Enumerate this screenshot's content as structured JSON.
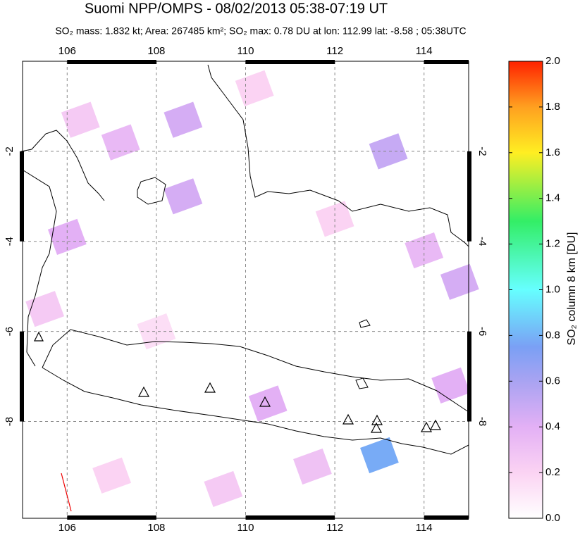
{
  "chart_data": {
    "type": "map",
    "title": "Suomi NPP/OMPS - 08/02/2013 05:38-07:19 UT",
    "subtitle": "SO₂ mass: 1.832 kt; Area: 267485 km²; SO₂ max: 0.78 DU at lon: 112.99 lat: -8.58 ; 05:38UTC",
    "xlim": [
      105,
      115
    ],
    "xticks": [
      106,
      108,
      110,
      112,
      114
    ],
    "ylim": [
      -10.15,
      0
    ],
    "yticks": [
      -8,
      -6,
      -4,
      -2
    ],
    "grid": true,
    "colorbar": {
      "label": "SO₂ column 8 km [DU]",
      "lim": [
        0,
        2
      ],
      "ticks": [
        {
          "value": 0,
          "label": "0.0"
        },
        {
          "value": 0.2,
          "label": "0.2"
        },
        {
          "value": 0.4,
          "label": "0.4"
        },
        {
          "value": 0.6,
          "label": "0.6"
        },
        {
          "value": 0.8,
          "label": "0.8"
        },
        {
          "value": 1,
          "label": "1.0"
        },
        {
          "value": 1.2,
          "label": "1.2"
        },
        {
          "value": 1.4,
          "label": "1.4"
        },
        {
          "value": 1.6,
          "label": "1.6"
        },
        {
          "value": 1.8,
          "label": "1.8"
        },
        {
          "value": 2,
          "label": "2.0"
        }
      ],
      "colorscale": [
        [
          0,
          "#ffffff"
        ],
        [
          0.2,
          "#fbd3f3"
        ],
        [
          0.4,
          "#e3b0f5"
        ],
        [
          0.6,
          "#a9a3f2"
        ],
        [
          0.75,
          "#7aa0f5"
        ],
        [
          1,
          "#66ffff"
        ],
        [
          1.3,
          "#33ee66"
        ],
        [
          1.6,
          "#ffee22"
        ],
        [
          1.8,
          "#ffa020"
        ],
        [
          2,
          "#ff2200"
        ]
      ]
    },
    "patches": [
      {
        "lon": 113.0,
        "lat": -8.75,
        "value": 0.78
      },
      {
        "lon": 110.5,
        "lat": -7.6,
        "value": 0.4
      },
      {
        "lon": 108.6,
        "lat": -1.3,
        "value": 0.45
      },
      {
        "lon": 108.6,
        "lat": -3.0,
        "value": 0.45
      },
      {
        "lon": 106.0,
        "lat": -3.9,
        "value": 0.4
      },
      {
        "lon": 113.2,
        "lat": -2.0,
        "value": 0.5
      },
      {
        "lon": 114.8,
        "lat": -4.9,
        "value": 0.45
      },
      {
        "lon": 107.2,
        "lat": -1.8,
        "value": 0.35
      },
      {
        "lon": 106.3,
        "lat": -1.3,
        "value": 0.25
      },
      {
        "lon": 111.5,
        "lat": -9.0,
        "value": 0.3
      },
      {
        "lon": 107.0,
        "lat": -9.2,
        "value": 0.2
      },
      {
        "lon": 112.0,
        "lat": -3.5,
        "value": 0.2
      },
      {
        "lon": 105.5,
        "lat": -5.5,
        "value": 0.25
      },
      {
        "lon": 114.0,
        "lat": -4.2,
        "value": 0.35
      },
      {
        "lon": 108.0,
        "lat": -6.0,
        "value": 0.15
      },
      {
        "lon": 109.5,
        "lat": -9.5,
        "value": 0.25
      },
      {
        "lon": 114.6,
        "lat": -7.2,
        "value": 0.4
      },
      {
        "lon": 110.2,
        "lat": -0.6,
        "value": 0.2
      }
    ]
  }
}
